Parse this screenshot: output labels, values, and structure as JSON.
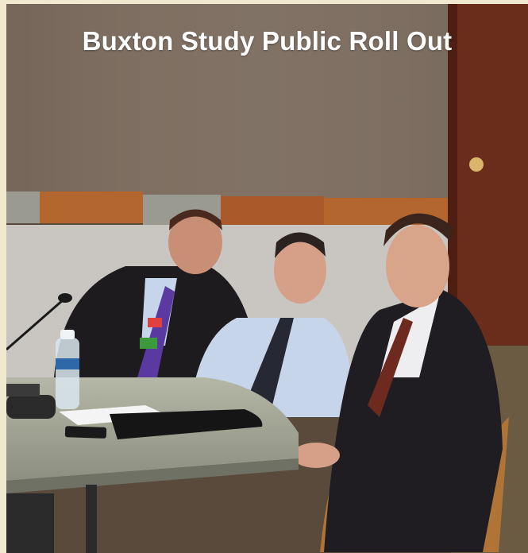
{
  "title": "Buxton Study Public Roll Out",
  "scene": {
    "colors": {
      "frame": "#f1e9cf",
      "wall": "#7e6f62",
      "wainscot": "#c9c6c2",
      "trim_orange": "#b4662f",
      "trim_gray": "#9a9a90",
      "door": "#6a2c1b",
      "table": "#a8aa99",
      "suit": "#1d1b1d",
      "shirt": "#c7d5ea",
      "chair": "#b07437"
    },
    "objects": [
      "microphone-icon",
      "water-bottle",
      "folder",
      "papers",
      "phone",
      "door-knob-icon",
      "chair"
    ]
  }
}
